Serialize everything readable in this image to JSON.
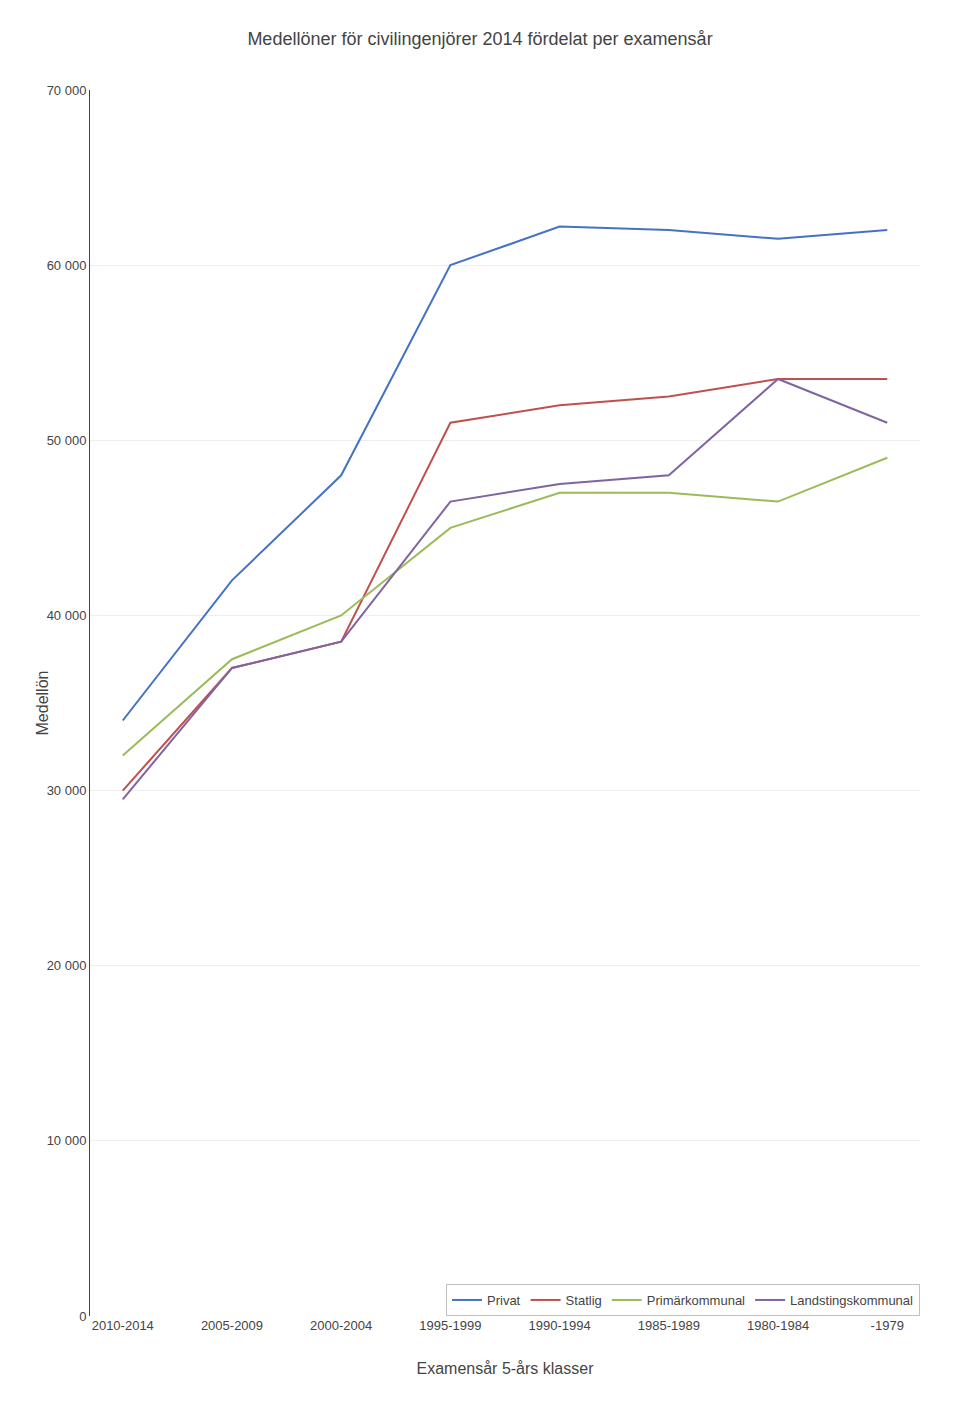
{
  "chart_data": {
    "type": "line",
    "title": "Medellöner för civilingenjörer 2014 fördelat per examensår",
    "xlabel": "Examensår 5-års klasser",
    "ylabel": "Medellön",
    "categories": [
      "2010-2014",
      "2005-2009",
      "2000-2004",
      "1995-1999",
      "1990-1994",
      "1985-1989",
      "1980-1984",
      "-1979"
    ],
    "series": [
      {
        "name": "Privat",
        "color": "#4472C4",
        "values": [
          34000,
          42000,
          48000,
          60000,
          62200,
          62000,
          61500,
          62000
        ]
      },
      {
        "name": "Statlig",
        "color": "#C0504D",
        "values": [
          30000,
          37000,
          38500,
          51000,
          52000,
          52500,
          53500,
          53500
        ]
      },
      {
        "name": "Primärkommunal",
        "color": "#9BBB59",
        "values": [
          32000,
          37500,
          40000,
          45000,
          47000,
          47000,
          46500,
          49000
        ]
      },
      {
        "name": "Landstingskommunal",
        "color": "#8064A2",
        "values": [
          29500,
          37000,
          38500,
          46500,
          47500,
          48000,
          53500,
          51000
        ]
      }
    ],
    "ylim": [
      0,
      70000
    ],
    "yticks": [
      0,
      {
        "value": 10000,
        "label": "10 000"
      },
      {
        "value": 20000,
        "label": "20 000"
      },
      {
        "value": 30000,
        "label": "30 000"
      },
      {
        "value": 40000,
        "label": "40 000"
      },
      {
        "value": 50000,
        "label": "50 000"
      },
      {
        "value": 60000,
        "label": "60 000"
      },
      {
        "value": 70000,
        "label": "70 000"
      }
    ],
    "grid": true,
    "legend": "lower right"
  }
}
